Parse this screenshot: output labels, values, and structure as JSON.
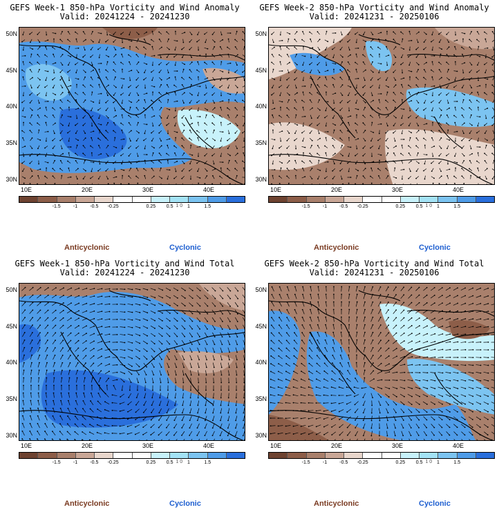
{
  "colors": {
    "anticyclonic_text": "#7a3b22",
    "cyclonic_text": "#1e5fd0",
    "scale": [
      "#6e4331",
      "#8d5e49",
      "#a9806c",
      "#c9a797",
      "#e9d7cd",
      "#ffffff",
      "#ffffff",
      "#c8f2fb",
      "#a4e3f6",
      "#7cc4f1",
      "#4f9ce8",
      "#2a6fdc"
    ]
  },
  "colorbar": {
    "ticks": [
      "-1.5",
      "-1",
      "-0.5",
      "-0.25",
      "0.25",
      "0.5",
      "1",
      "1.5"
    ],
    "marker": "1 0"
  },
  "axes": {
    "lat_labels": [
      "50N",
      "45N",
      "40N",
      "35N",
      "30N"
    ],
    "lon_labels": [
      "10E",
      "20E",
      "30E",
      "40E"
    ]
  },
  "legend": {
    "left": "Anticyclonic",
    "right": "Cyclonic"
  },
  "panels": [
    {
      "title": "GEFS Week-1 850-hPa Vorticity and Wind Anomaly",
      "valid": "Valid: 20241224 - 20241230",
      "style": "anom1"
    },
    {
      "title": "GEFS Week-2 850-hPa Vorticity and Wind Anomaly",
      "valid": "Valid: 20241231 - 20250106",
      "style": "anom2"
    },
    {
      "title": "GEFS Week-1 850-hPa Vorticity and Wind Total",
      "valid": "Valid: 20241224 - 20241230",
      "style": "tot1"
    },
    {
      "title": "GEFS Week-2 850-hPa Vorticity and Wind Total",
      "valid": "Valid: 20241231 - 20250106",
      "style": "tot2"
    }
  ]
}
